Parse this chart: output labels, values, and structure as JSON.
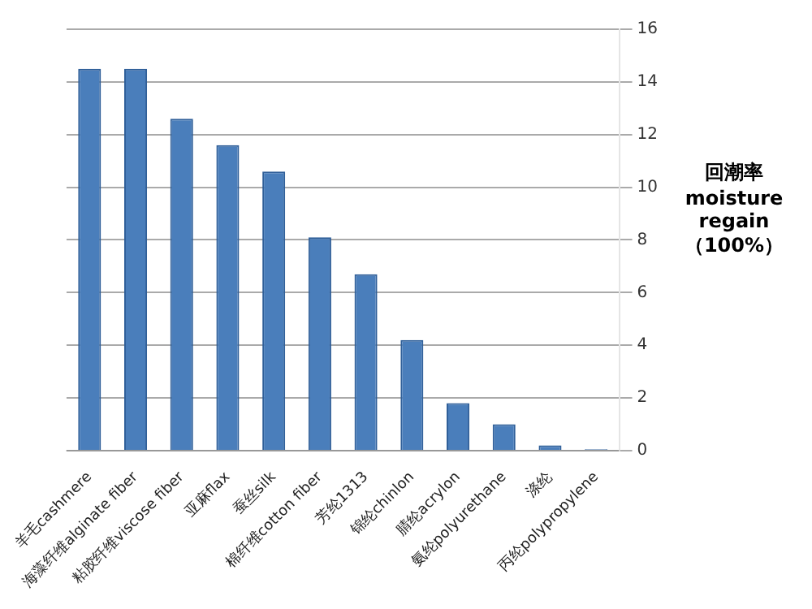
{
  "chart_data": {
    "type": "bar",
    "ylabel": "回潮率 moisture regain （100%）",
    "categories": [
      "羊毛cashmere",
      "海藻纤维alginate fiber",
      "粘胶纤维viscose fiber",
      "亚麻flax",
      "蚕丝silk",
      "棉纤维cotton fiber",
      "芳纶1313",
      "锦纶chinlon",
      "腈纶acrylon",
      "氨纶polyurethane",
      "涤纶",
      "丙纶polypropylene"
    ],
    "values": [
      14.5,
      14.5,
      12.6,
      11.6,
      10.6,
      8.1,
      6.7,
      4.2,
      1.8,
      1.0,
      0.2,
      0.05
    ],
    "color": "#4a7ebb",
    "ylim": [
      0,
      16
    ],
    "yticks": [
      0,
      2,
      4,
      6,
      8,
      10,
      12,
      14,
      16
    ],
    "grid": "y"
  }
}
